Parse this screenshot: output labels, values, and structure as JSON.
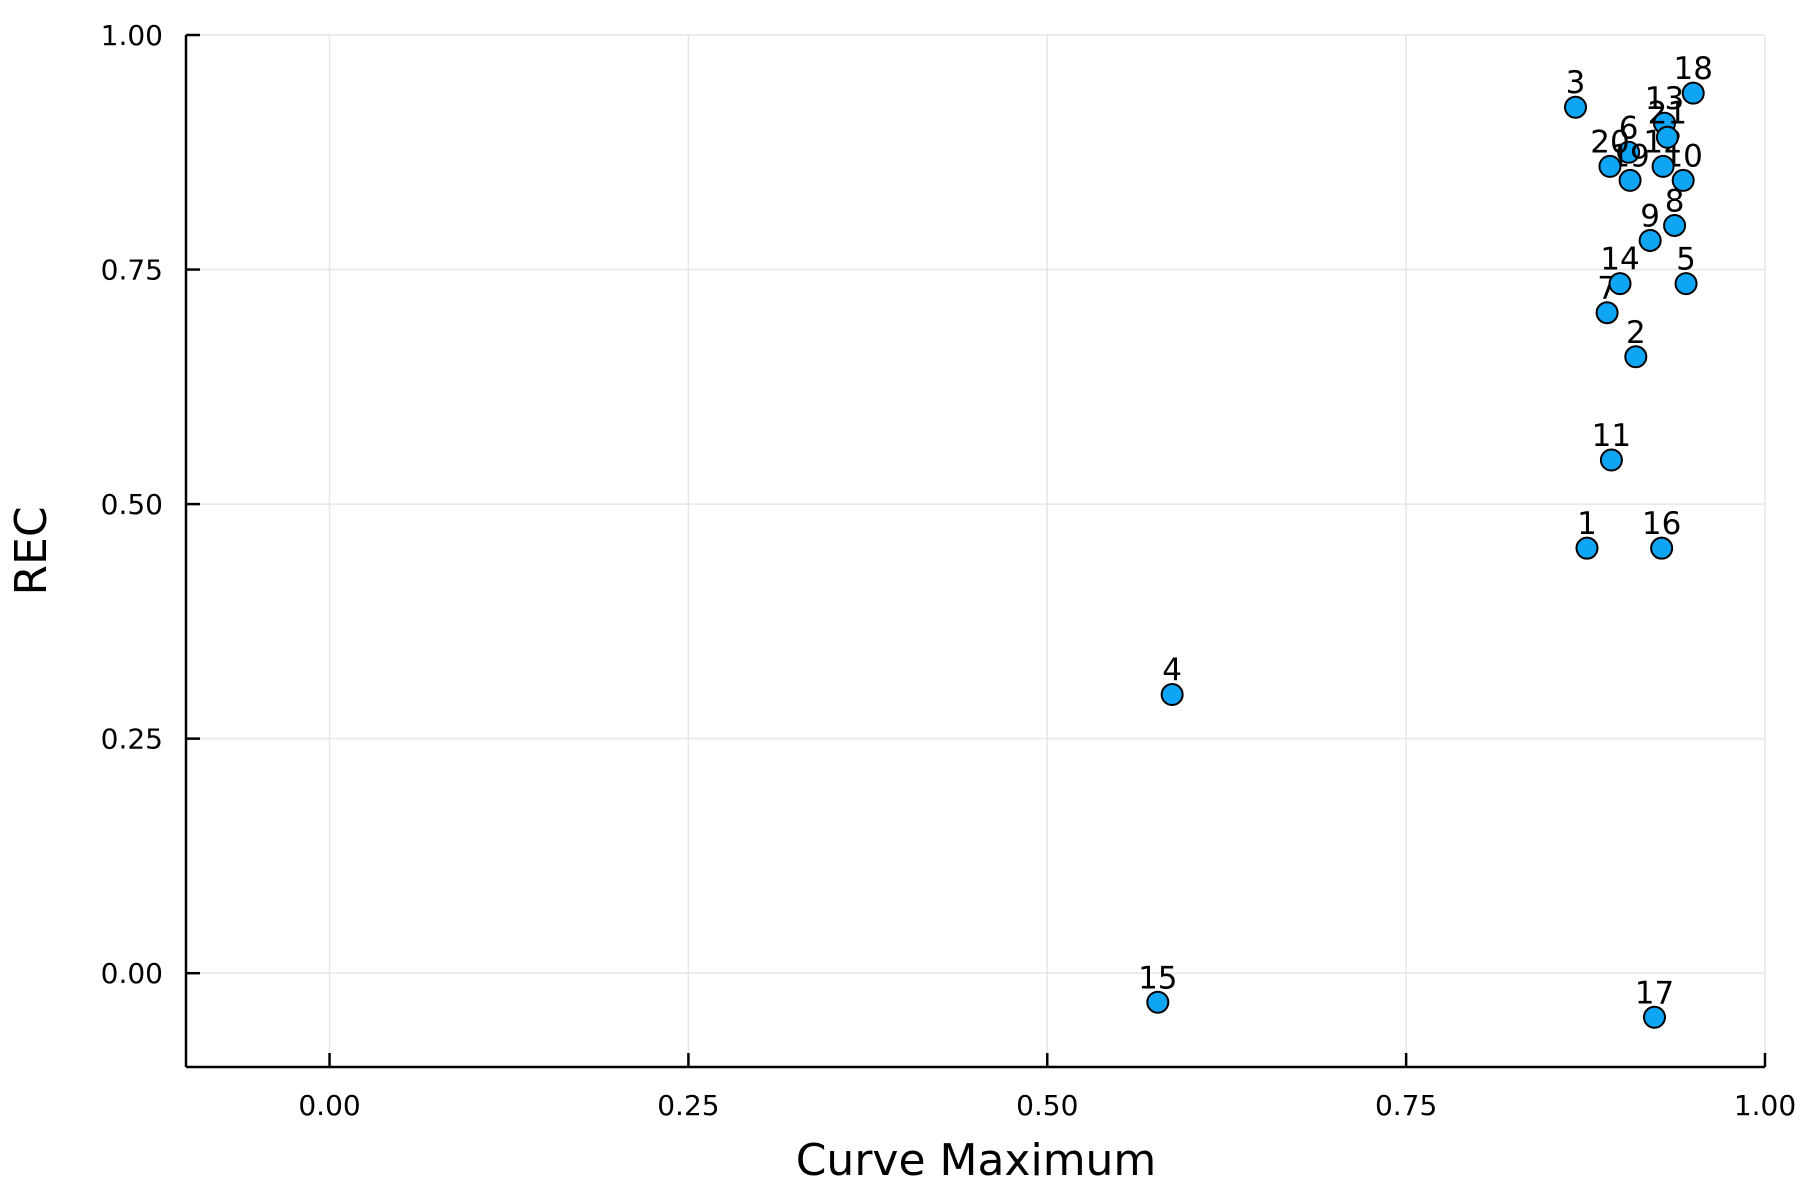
{
  "chart_data": {
    "type": "scatter",
    "title": "",
    "xlabel": "Curve Maximum",
    "ylabel": "REC",
    "xlim": [
      -0.1,
      1.0
    ],
    "ylim": [
      -0.1,
      1.0
    ],
    "xticks": [
      "0.00",
      "0.25",
      "0.50",
      "0.75",
      "1.00"
    ],
    "yticks": [
      "0.00",
      "0.25",
      "0.50",
      "0.75",
      "1.00"
    ],
    "grid": true,
    "legend": false,
    "point_color": "#0ea5f5",
    "points": [
      {
        "label": "1",
        "x": 0.876,
        "y": 0.453
      },
      {
        "label": "2",
        "x": 0.91,
        "y": 0.657
      },
      {
        "label": "3",
        "x": 0.868,
        "y": 0.923
      },
      {
        "label": "4",
        "x": 0.587,
        "y": 0.297
      },
      {
        "label": "5",
        "x": 0.945,
        "y": 0.735
      },
      {
        "label": "6",
        "x": 0.905,
        "y": 0.875
      },
      {
        "label": "7",
        "x": 0.89,
        "y": 0.704
      },
      {
        "label": "8",
        "x": 0.937,
        "y": 0.797
      },
      {
        "label": "9",
        "x": 0.92,
        "y": 0.781
      },
      {
        "label": "10",
        "x": 0.943,
        "y": 0.845
      },
      {
        "label": "11",
        "x": 0.893,
        "y": 0.547
      },
      {
        "label": "12",
        "x": 0.929,
        "y": 0.86
      },
      {
        "label": "13",
        "x": 0.93,
        "y": 0.906
      },
      {
        "label": "14",
        "x": 0.899,
        "y": 0.735
      },
      {
        "label": "15",
        "x": 0.577,
        "y": -0.031
      },
      {
        "label": "16",
        "x": 0.928,
        "y": 0.453
      },
      {
        "label": "17",
        "x": 0.923,
        "y": -0.047
      },
      {
        "label": "18",
        "x": 0.95,
        "y": 0.938
      },
      {
        "label": "19",
        "x": 0.906,
        "y": 0.845
      },
      {
        "label": "20",
        "x": 0.892,
        "y": 0.86
      },
      {
        "label": "21",
        "x": 0.932,
        "y": 0.891
      }
    ]
  }
}
